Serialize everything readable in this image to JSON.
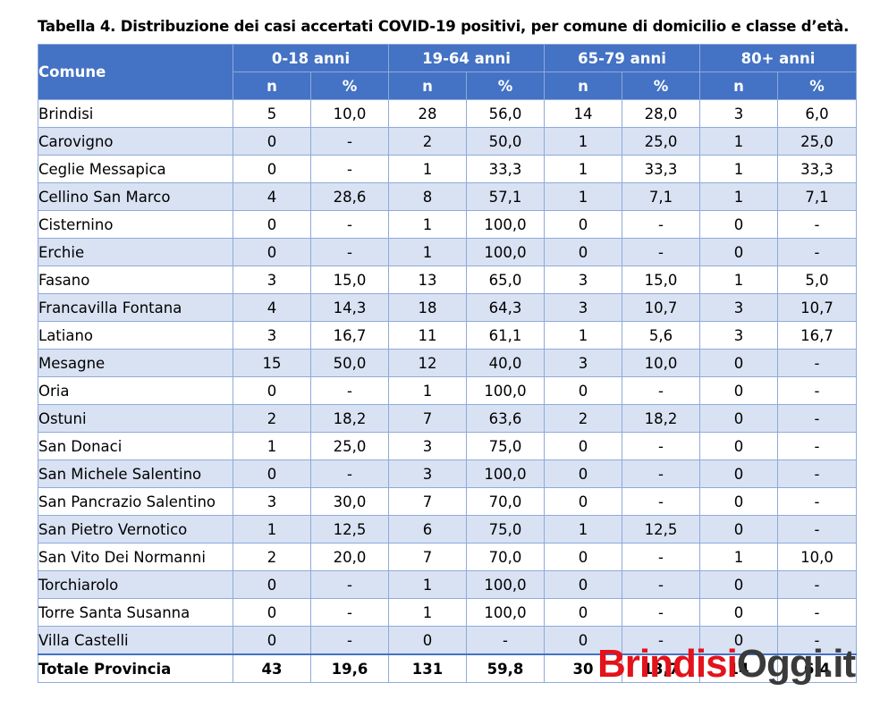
{
  "title": "Tabella 4. Distribuzione dei casi accertati COVID-19 positivi, per comune di domicilio e classe d’età.",
  "header": {
    "comune": "Comune",
    "groups": [
      "0-18 anni",
      "19-64 anni",
      "65-79 anni",
      "80+ anni"
    ],
    "sub": [
      "n",
      "%",
      "n",
      "%",
      "n",
      "%",
      "n",
      "%"
    ]
  },
  "rows": [
    {
      "c": "Brindisi",
      "v": [
        "5",
        "10,0",
        "28",
        "56,0",
        "14",
        "28,0",
        "3",
        "6,0"
      ]
    },
    {
      "c": "Carovigno",
      "v": [
        "0",
        "-",
        "2",
        "50,0",
        "1",
        "25,0",
        "1",
        "25,0"
      ]
    },
    {
      "c": "Ceglie Messapica",
      "v": [
        "0",
        "-",
        "1",
        "33,3",
        "1",
        "33,3",
        "1",
        "33,3"
      ]
    },
    {
      "c": "Cellino San Marco",
      "v": [
        "4",
        "28,6",
        "8",
        "57,1",
        "1",
        "7,1",
        "1",
        "7,1"
      ]
    },
    {
      "c": "Cisternino",
      "v": [
        "0",
        "-",
        "1",
        "100,0",
        "0",
        "-",
        "0",
        "-"
      ]
    },
    {
      "c": "Erchie",
      "v": [
        "0",
        "-",
        "1",
        "100,0",
        "0",
        "-",
        "0",
        "-"
      ]
    },
    {
      "c": "Fasano",
      "v": [
        "3",
        "15,0",
        "13",
        "65,0",
        "3",
        "15,0",
        "1",
        "5,0"
      ]
    },
    {
      "c": "Francavilla Fontana",
      "v": [
        "4",
        "14,3",
        "18",
        "64,3",
        "3",
        "10,7",
        "3",
        "10,7"
      ]
    },
    {
      "c": "Latiano",
      "v": [
        "3",
        "16,7",
        "11",
        "61,1",
        "1",
        "5,6",
        "3",
        "16,7"
      ]
    },
    {
      "c": "Mesagne",
      "v": [
        "15",
        "50,0",
        "12",
        "40,0",
        "3",
        "10,0",
        "0",
        "-"
      ]
    },
    {
      "c": "Oria",
      "v": [
        "0",
        "-",
        "1",
        "100,0",
        "0",
        "-",
        "0",
        "-"
      ]
    },
    {
      "c": "Ostuni",
      "v": [
        "2",
        "18,2",
        "7",
        "63,6",
        "2",
        "18,2",
        "0",
        "-"
      ]
    },
    {
      "c": "San Donaci",
      "v": [
        "1",
        "25,0",
        "3",
        "75,0",
        "0",
        "-",
        "0",
        "-"
      ]
    },
    {
      "c": "San Michele Salentino",
      "v": [
        "0",
        "-",
        "3",
        "100,0",
        "0",
        "-",
        "0",
        "-"
      ]
    },
    {
      "c": "San Pancrazio Salentino",
      "v": [
        "3",
        "30,0",
        "7",
        "70,0",
        "0",
        "-",
        "0",
        "-"
      ]
    },
    {
      "c": "San Pietro Vernotico",
      "v": [
        "1",
        "12,5",
        "6",
        "75,0",
        "1",
        "12,5",
        "0",
        "-"
      ]
    },
    {
      "c": "San Vito Dei Normanni",
      "v": [
        "2",
        "20,0",
        "7",
        "70,0",
        "0",
        "-",
        "1",
        "10,0"
      ]
    },
    {
      "c": "Torchiarolo",
      "v": [
        "0",
        "-",
        "1",
        "100,0",
        "0",
        "-",
        "0",
        "-"
      ]
    },
    {
      "c": "Torre Santa Susanna",
      "v": [
        "0",
        "-",
        "1",
        "100,0",
        "0",
        "-",
        "0",
        "-"
      ]
    },
    {
      "c": "Villa Castelli",
      "v": [
        "0",
        "-",
        "0",
        "-",
        "0",
        "-",
        "0",
        "-"
      ]
    }
  ],
  "total": {
    "c": "Totale Provincia",
    "v": [
      "43",
      "19,6",
      "131",
      "59,8",
      "30",
      "13,7",
      "14",
      "6,4"
    ]
  },
  "watermark": {
    "part1": "Brindisi",
    "part2": "Oggi.it"
  }
}
